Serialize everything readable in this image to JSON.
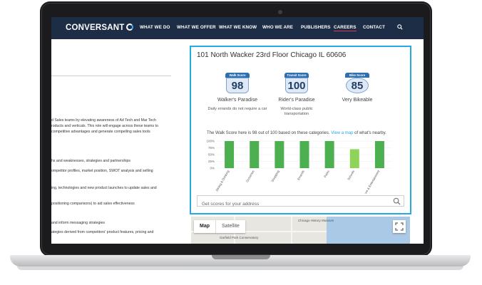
{
  "nav": {
    "logo": "CONVERSANT",
    "items": [
      "WHAT WE DO",
      "WHAT WE OFFER",
      "WHAT WE KNOW",
      "WHO WE ARE",
      "PUBLISHERS",
      "CAREERS",
      "CONTACT"
    ]
  },
  "left_text": [
    "d Sales teams by elevating awareness of Ad Tech and Mar Tech",
    "roducts and verticals. This role will engage across these teams to",
    "competitive advantages and generate compelling sales tools",
    "hs and weaknesses, strategies and partnerships",
    "ompetitor profiles, market position, SWOT analysis and selling",
    "ing, technologies and new product launches to update sales and",
    "positioning comparisons) to aid sales effectiveness",
    "and inform messaging strategies",
    "ategies derived from competitors' product features, pricing and"
  ],
  "walkscore": {
    "address": "101 North Wacker 23rd Floor Chicago IL 60606",
    "scores": [
      {
        "title": "Walk Score",
        "value": "98",
        "label": "Walker's Paradise",
        "desc": "Daily errands do not require a car"
      },
      {
        "title": "Transit Score",
        "value": "100",
        "label": "Rider's Paradise",
        "desc": "World-class public transportation"
      },
      {
        "title": "Bike Score",
        "value": "85",
        "label": "Very Bikeable",
        "desc": ""
      }
    ],
    "summary_text": "The Walk Score here is 98 out of 100 based on these categories.",
    "summary_link": "View a map",
    "summary_tail": " of what's nearby.",
    "search_placeholder": "Get scores for your address"
  },
  "chart_data": {
    "type": "bar",
    "categories": [
      "Dining & Drinking",
      "Groceries",
      "Shopping",
      "Errands",
      "Parks",
      "Schools",
      "Culture & Entertainment"
    ],
    "values": [
      100,
      100,
      100,
      100,
      100,
      70,
      100
    ],
    "yticks": [
      "100%",
      "75%",
      "50%",
      "25%",
      "0%"
    ],
    "ylim": [
      0,
      100
    ],
    "colors": [
      "#4caf50",
      "#4caf50",
      "#4caf50",
      "#4caf50",
      "#4caf50",
      "#8fd45a",
      "#4caf50"
    ]
  },
  "map": {
    "btn_map": "Map",
    "btn_satellite": "Satellite",
    "labels": [
      "Chicago History Museum",
      "Garfield Park Conservatory"
    ]
  },
  "colors": {
    "nav_bg": "#1e2d46",
    "widget_border": "#27a9e1",
    "bar_green": "#4caf50",
    "bar_light_green": "#8fd45a"
  }
}
